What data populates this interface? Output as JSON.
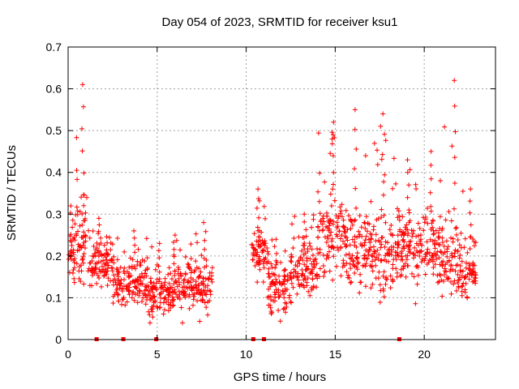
{
  "chart_data": {
    "type": "scatter",
    "title": "Day 054 of 2023, SRMTID for receiver ksu1",
    "xlabel": "GPS time / hours",
    "ylabel": "SRMTID / TECUs",
    "xlim": [
      0,
      24
    ],
    "ylim": [
      0,
      0.7
    ],
    "xticks": [
      0,
      5,
      10,
      15,
      20
    ],
    "yticks": [
      0,
      0.1,
      0.2,
      0.3,
      0.4,
      0.5,
      0.6,
      0.7
    ],
    "xtick_labels": [
      "0",
      "5",
      "10",
      "15",
      "20"
    ],
    "ytick_labels": [
      "0",
      "0.1",
      "0.2",
      "0.3",
      "0.4",
      "0.5",
      "0.6",
      "0.7"
    ],
    "grid": true,
    "marker": "+",
    "colors": {
      "series": "#ff0000",
      "grid": "#a0a0a0",
      "axis": "#000000"
    },
    "series": [
      {
        "name": "SRMTID",
        "segments": [
          {
            "x_range": [
              0.0,
              0.4
            ],
            "base": 0.2,
            "amp": 0.06,
            "peak": 0.32
          },
          {
            "x_range": [
              0.4,
              1.2
            ],
            "base": 0.24,
            "amp": 0.09,
            "peak": 0.61
          },
          {
            "x_range": [
              1.2,
              2.5
            ],
            "base": 0.18,
            "amp": 0.05,
            "peak": 0.29
          },
          {
            "x_range": [
              2.5,
              4.5
            ],
            "base": 0.14,
            "amp": 0.05,
            "peak": 0.26
          },
          {
            "x_range": [
              4.5,
              5.5
            ],
            "base": 0.11,
            "amp": 0.05,
            "peak": 0.23
          },
          {
            "x_range": [
              5.5,
              7.0
            ],
            "base": 0.13,
            "amp": 0.05,
            "peak": 0.25
          },
          {
            "x_range": [
              7.0,
              8.1
            ],
            "base": 0.13,
            "amp": 0.05,
            "peak": 0.28
          },
          {
            "x_range": [
              10.3,
              11.2
            ],
            "base": 0.2,
            "amp": 0.06,
            "peak": 0.36
          },
          {
            "x_range": [
              11.2,
              12.5
            ],
            "base": 0.12,
            "amp": 0.05,
            "peak": 0.24
          },
          {
            "x_range": [
              12.5,
              14.0
            ],
            "base": 0.17,
            "amp": 0.05,
            "peak": 0.3
          },
          {
            "x_range": [
              14.0,
              15.5
            ],
            "base": 0.24,
            "amp": 0.08,
            "peak": 0.52
          },
          {
            "x_range": [
              15.5,
              17.0
            ],
            "base": 0.22,
            "amp": 0.08,
            "peak": 0.55
          },
          {
            "x_range": [
              17.0,
              18.5
            ],
            "base": 0.2,
            "amp": 0.07,
            "peak": 0.54
          },
          {
            "x_range": [
              18.5,
              20.0
            ],
            "base": 0.22,
            "amp": 0.08,
            "peak": 0.43
          },
          {
            "x_range": [
              20.0,
              21.0
            ],
            "base": 0.22,
            "amp": 0.07,
            "peak": 0.45
          },
          {
            "x_range": [
              21.0,
              22.0
            ],
            "base": 0.19,
            "amp": 0.07,
            "peak": 0.62
          },
          {
            "x_range": [
              22.0,
              22.9
            ],
            "base": 0.16,
            "amp": 0.06,
            "peak": 0.36
          }
        ]
      }
    ],
    "baseline_markers": [
      1.6,
      3.1,
      4.95,
      10.4,
      11.0,
      18.6
    ]
  }
}
